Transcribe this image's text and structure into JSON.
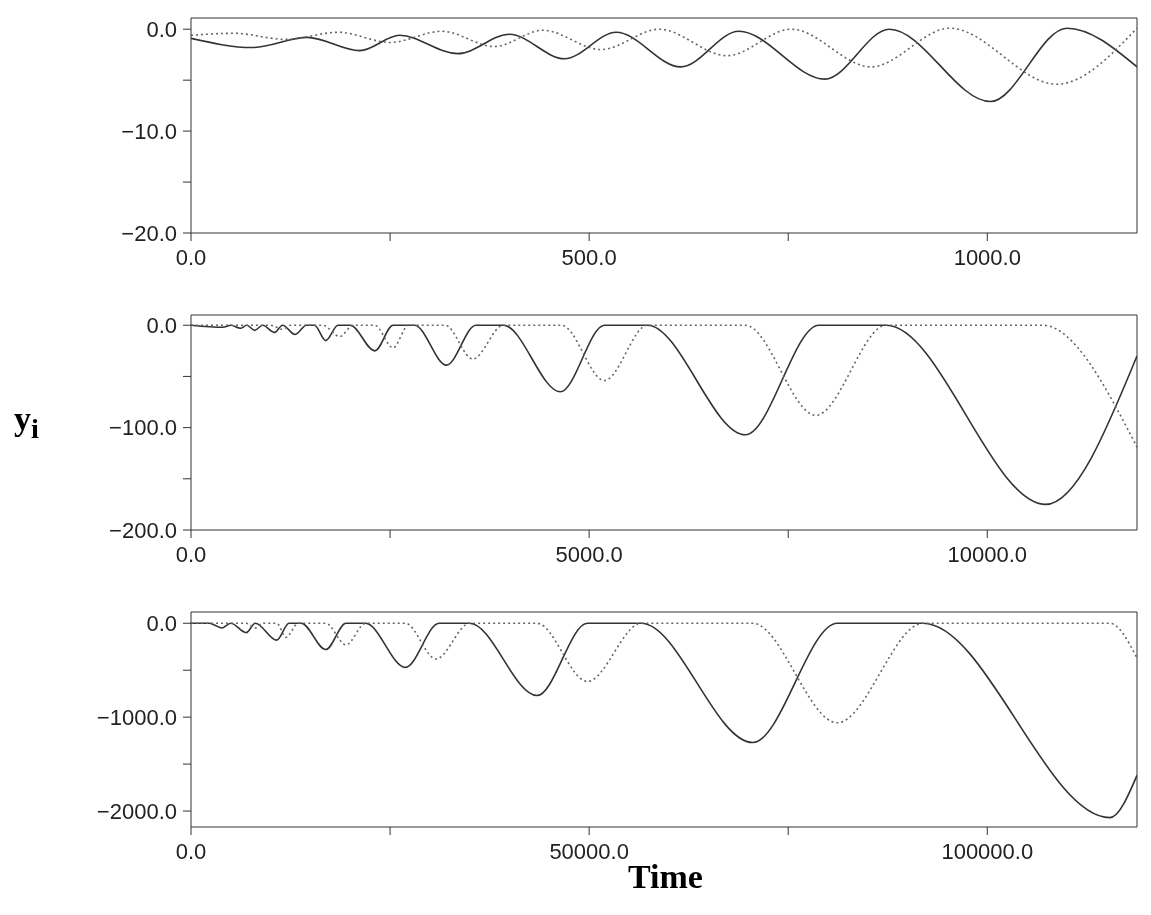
{
  "chart_data": [
    {
      "type": "line",
      "xlim": [
        0,
        1188
      ],
      "xticks": [
        {
          "value": 0,
          "label": "0.0"
        },
        {
          "value": 250,
          "label": null
        },
        {
          "value": 500,
          "label": "500.0"
        },
        {
          "value": 750,
          "label": null
        },
        {
          "value": 1000,
          "label": "1000.0"
        }
      ],
      "ylim": [
        -20,
        1.1
      ],
      "yticks": [
        {
          "value": 0,
          "label": "0.0"
        },
        {
          "value": -5,
          "label": null
        },
        {
          "value": -10,
          "label": "−10.0"
        },
        {
          "value": -15,
          "label": null
        },
        {
          "value": -20,
          "label": "−20.0"
        }
      ],
      "grid": false,
      "legend": false,
      "marker": "none",
      "series": [
        {
          "color": "#333333",
          "line_style": "solid",
          "x": [
            0,
            77,
            146,
            212,
            262,
            335,
            400,
            469,
            534,
            615,
            688,
            796,
            877,
            1004,
            1100,
            1188
          ],
          "values": [
            -0.9,
            -1.8,
            -0.8,
            -2.1,
            -0.6,
            -2.4,
            -0.5,
            -2.9,
            -0.3,
            -3.7,
            -0.2,
            -4.9,
            0,
            -7.1,
            0.1,
            -3.7
          ]
        },
        {
          "color": "#666666",
          "line_style": "dotted",
          "x": [
            0,
            54,
            119,
            185,
            250,
            315,
            381,
            442,
            515,
            588,
            673,
            754,
            854,
            953,
            1087,
            1188
          ],
          "values": [
            -0.6,
            -0.4,
            -1.0,
            -0.3,
            -1.3,
            -0.2,
            -1.7,
            -0.1,
            -2.0,
            0,
            -2.6,
            0,
            -3.7,
            0.1,
            -5.4,
            0.1
          ]
        }
      ]
    },
    {
      "type": "line",
      "ylabel": "y$_{i}$",
      "xlim": [
        0,
        11880
      ],
      "xticks": [
        {
          "value": 0,
          "label": "0.0"
        },
        {
          "value": 2500,
          "label": null
        },
        {
          "value": 5000,
          "label": "5000.0"
        },
        {
          "value": 7500,
          "label": null
        },
        {
          "value": 10000,
          "label": "10000.0"
        }
      ],
      "ylim": [
        -200,
        10
      ],
      "yticks": [
        {
          "value": 0,
          "label": "0.0"
        },
        {
          "value": -50,
          "label": null
        },
        {
          "value": -100,
          "label": "−100.0"
        },
        {
          "value": -150,
          "label": null
        },
        {
          "value": -200,
          "label": "−200.0"
        }
      ],
      "grid": false,
      "legend": false,
      "marker": "none",
      "series": [
        {
          "color": "#333333",
          "line_style": "solid",
          "x": [
            0,
            400,
            500,
            620,
            700,
            800,
            900,
            1050,
            1150,
            1308,
            1450,
            1550,
            1692,
            1846,
            2000,
            2308,
            2538,
            2808,
            3208,
            3577,
            3923,
            4638,
            5192,
            5731,
            6962,
            7885,
            8731,
            10731,
            11880
          ],
          "values": [
            0,
            -2,
            0,
            -3,
            0,
            -5,
            0,
            -7,
            0,
            -9,
            0,
            0,
            -15,
            0,
            0,
            -25,
            0,
            0,
            -39,
            0,
            0,
            -65,
            0,
            0,
            -107,
            0,
            0,
            -175,
            -30
          ]
        },
        {
          "color": "#666666",
          "line_style": "dotted",
          "x": [
            0,
            1000,
            1150,
            1250,
            1400,
            1500,
            1654,
            1869,
            2038,
            2308,
            2538,
            2731,
            3192,
            3538,
            3923,
            4654,
            5192,
            5731,
            6962,
            7846,
            8731,
            10692,
            11880
          ],
          "values": [
            0,
            0,
            -4,
            0,
            0,
            0,
            0,
            -11,
            0,
            0,
            -22,
            0,
            0,
            -33,
            0,
            0,
            -54,
            0,
            0,
            -88,
            0,
            0,
            -119
          ]
        }
      ]
    },
    {
      "type": "line",
      "xlabel": "Time",
      "xlim": [
        0,
        118800
      ],
      "xticks": [
        {
          "value": 0,
          "label": "0.0"
        },
        {
          "value": 25000,
          "label": null
        },
        {
          "value": 50000,
          "label": "50000.0"
        },
        {
          "value": 75000,
          "label": null
        },
        {
          "value": 100000,
          "label": "100000.0"
        }
      ],
      "ylim": [
        -2170,
        120
      ],
      "yticks": [
        {
          "value": 0,
          "label": "0.0"
        },
        {
          "value": -500,
          "label": null
        },
        {
          "value": -1000,
          "label": "−1000.0"
        },
        {
          "value": -1500,
          "label": null
        },
        {
          "value": -2000,
          "label": "−2000.0"
        }
      ],
      "grid": false,
      "legend": false,
      "marker": "none",
      "series": [
        {
          "color": "#333333",
          "line_style": "solid",
          "x": [
            0,
            2300,
            3000,
            3846,
            5000,
            6923,
            8077,
            10769,
            12308,
            13846,
            16923,
            19462,
            21923,
            26923,
            31154,
            35000,
            43462,
            49769,
            56538,
            70538,
            81154,
            91923,
            115385,
            118800
          ],
          "values": [
            0,
            0,
            -20,
            -50,
            0,
            -100,
            0,
            -180,
            0,
            0,
            -280,
            0,
            0,
            -470,
            0,
            0,
            -770,
            0,
            0,
            -1270,
            0,
            0,
            -2070,
            -1620
          ]
        },
        {
          "color": "#666666",
          "line_style": "dotted",
          "x": [
            0,
            6923,
            8077,
            9000,
            10769,
            11923,
            13462,
            16923,
            19462,
            21923,
            26923,
            30769,
            35000,
            43462,
            49769,
            56538,
            70538,
            81154,
            91923,
            115385,
            118800
          ],
          "values": [
            0,
            0,
            -50,
            0,
            0,
            -150,
            0,
            0,
            -230,
            0,
            0,
            -380,
            0,
            0,
            -620,
            0,
            0,
            -1060,
            0,
            0,
            -370
          ]
        }
      ]
    }
  ]
}
